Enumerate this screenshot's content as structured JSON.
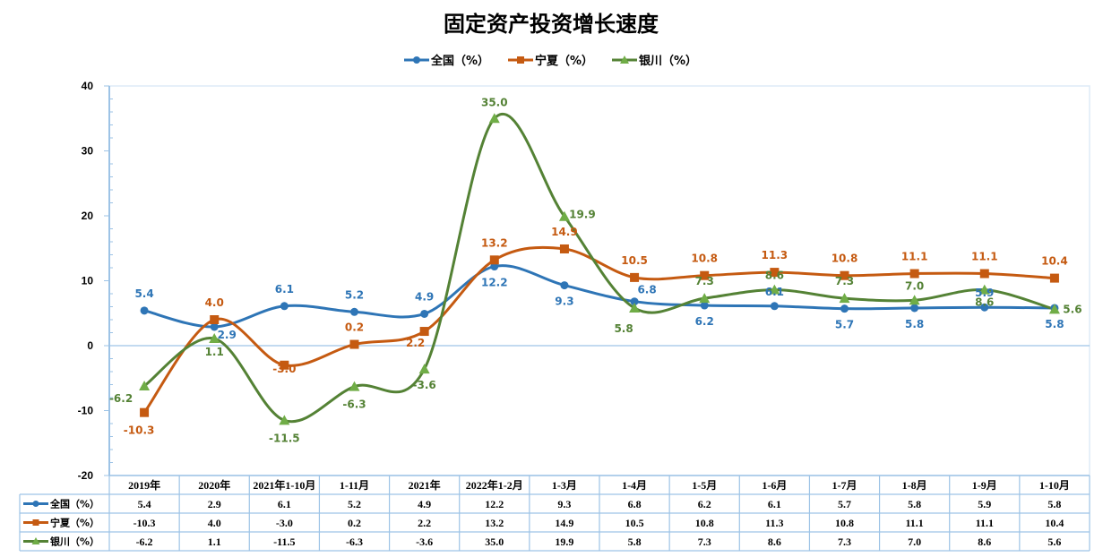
{
  "chart_data": {
    "type": "line",
    "title": "固定资产投资增长速度",
    "xlabel": "",
    "ylabel": "",
    "ylim": [
      -20,
      40
    ],
    "y_major_step": 10,
    "y_minor_step": 2,
    "yticks": [
      "40",
      "30",
      "20",
      "10",
      "0",
      "-10",
      "-20"
    ],
    "grid": false,
    "legend_position": "top",
    "smooth": true,
    "categories": [
      "2019年",
      "2020年",
      "2021年1-10月",
      "1-11月",
      "2021年",
      "2022年1-2月",
      "1-3月",
      "1-4月",
      "1-5月",
      "1-6月",
      "1-7月",
      "1-8月",
      "1-9月",
      "1-10月"
    ],
    "series": [
      {
        "name": "全国（%）",
        "color": "#2E75B6",
        "marker_color": "#2E75B6",
        "marker": "circle",
        "values": [
          5.4,
          2.9,
          6.1,
          5.2,
          4.9,
          12.2,
          9.3,
          6.8,
          6.2,
          6.1,
          5.7,
          5.8,
          5.9,
          5.8
        ],
        "labels": [
          "5.4",
          "2.9",
          "6.1",
          "5.2",
          "4.9",
          "12.2",
          "9.3",
          "6.8",
          "6.2",
          "6.1",
          "5.7",
          "5.8",
          "5.9",
          "5.8"
        ],
        "table_values": [
          "5.4",
          "2.9",
          "6.1",
          "5.2",
          "4.9",
          "12.2",
          "9.3",
          "6.8",
          "6.2",
          "6.1",
          "5.7",
          "5.8",
          "5.9",
          "5.8"
        ]
      },
      {
        "name": "宁夏（%）",
        "color": "#C55A11",
        "marker_color": "#C55A11",
        "marker": "square",
        "values": [
          -10.3,
          4.0,
          -3.0,
          0.2,
          2.2,
          13.2,
          14.9,
          10.5,
          10.8,
          11.3,
          10.8,
          11.1,
          11.1,
          10.4
        ],
        "labels": [
          "-10.3",
          "4.0",
          "-3.0",
          "0.2",
          "2.2",
          "13.2",
          "14.9",
          "10.5",
          "10.8",
          "11.3",
          "10.8",
          "11.1",
          "11.1",
          "10.4"
        ],
        "table_values": [
          "-10.3",
          "4.0",
          "-3.0",
          "0.2",
          "2.2",
          "13.2",
          "14.9",
          "10.5",
          "10.8",
          "11.3",
          "10.8",
          "11.1",
          "11.1",
          "10.4"
        ]
      },
      {
        "name": "银川（%）",
        "color": "#548235",
        "marker_color": "#70AD47",
        "marker": "triangle",
        "values": [
          -6.2,
          1.1,
          -11.5,
          -6.3,
          -3.6,
          35.0,
          19.9,
          5.8,
          7.3,
          8.6,
          7.3,
          7.0,
          8.6,
          5.6
        ],
        "labels": [
          "-6.2",
          "1.1",
          "-11.5",
          "-6.3",
          "-3.6",
          "35.0",
          "19.9",
          "5.8",
          "7.3",
          "8.6",
          "7.3",
          "7.0",
          "8.6",
          "5.6"
        ],
        "table_values": [
          "-6.2",
          "1.1",
          "-11.5",
          "-6.3",
          "-3.6",
          "35.0",
          "19.9",
          "5.8",
          "7.3",
          "8.6",
          "7.3",
          "7.0",
          "8.6",
          "5.6"
        ]
      }
    ],
    "data_table": true
  },
  "colors": {
    "axis": "#9DC3E6",
    "plot_border": "#DEEBF7"
  }
}
